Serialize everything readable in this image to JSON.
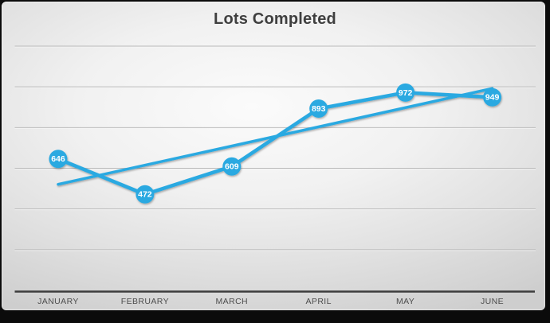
{
  "chart_data": {
    "type": "line",
    "title": "Lots Completed",
    "categories": [
      "JANUARY",
      "FEBRUARY",
      "MARCH",
      "APRIL",
      "MAY",
      "JUNE"
    ],
    "series": [
      {
        "name": "Lots Completed",
        "values": [
          646,
          472,
          609,
          893,
          972,
          949
        ]
      }
    ],
    "data_labels": true,
    "trendline": {
      "type": "linear",
      "start_value": 521,
      "end_value": 992
    },
    "xlabel": "",
    "ylabel": "",
    "ylim": [
      0,
      1300
    ],
    "gridlines_at": [
      200,
      400,
      600,
      800,
      1000,
      1200
    ],
    "grid": true,
    "legend": false,
    "colors": {
      "accent_blue": "#29a9e1",
      "marker_fill": "#29a9e1",
      "marker_label": "#ffffff",
      "gridline": "#b9b9b9",
      "gridline_highlight": "#f6f6f6",
      "axis_line": "#3d3d3d",
      "title_text": "#3f3f3f",
      "category_label": "#4d4d4d"
    }
  }
}
